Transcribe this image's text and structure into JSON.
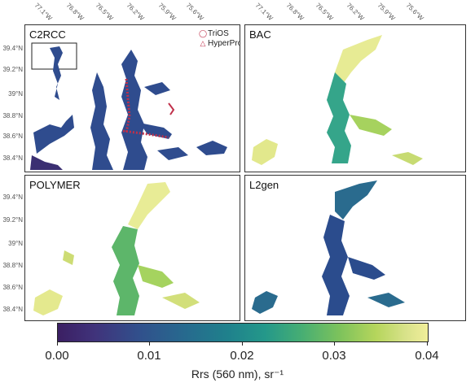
{
  "panels": [
    {
      "label": "C2RCC"
    },
    {
      "label": "BAC"
    },
    {
      "label": "POLYMER"
    },
    {
      "label": "L2gen"
    }
  ],
  "legend": {
    "items": [
      {
        "symbol": "◯",
        "label": "TriOS"
      },
      {
        "symbol": "△",
        "label": "HyperPro"
      }
    ]
  },
  "lat_ticks": [
    "39.4°N",
    "39.2°N",
    "39°N",
    "38.8°N",
    "38.6°N",
    "38.4°N"
  ],
  "lon_ticks": [
    "77.1°W",
    "76.8°W",
    "76.5°W",
    "76.2°W",
    "75.9°W",
    "75.6°W"
  ],
  "colorbar": {
    "ticks": [
      "0.00",
      "0.01",
      "0.02",
      "0.03",
      "0.04"
    ],
    "title": "Rrs (560 nm), sr⁻¹",
    "range": [
      0,
      0.04
    ],
    "colors": [
      "#3b1f63",
      "#31508c",
      "#1f818c",
      "#47ae73",
      "#b5d55c",
      "#f1ee9a"
    ]
  }
}
